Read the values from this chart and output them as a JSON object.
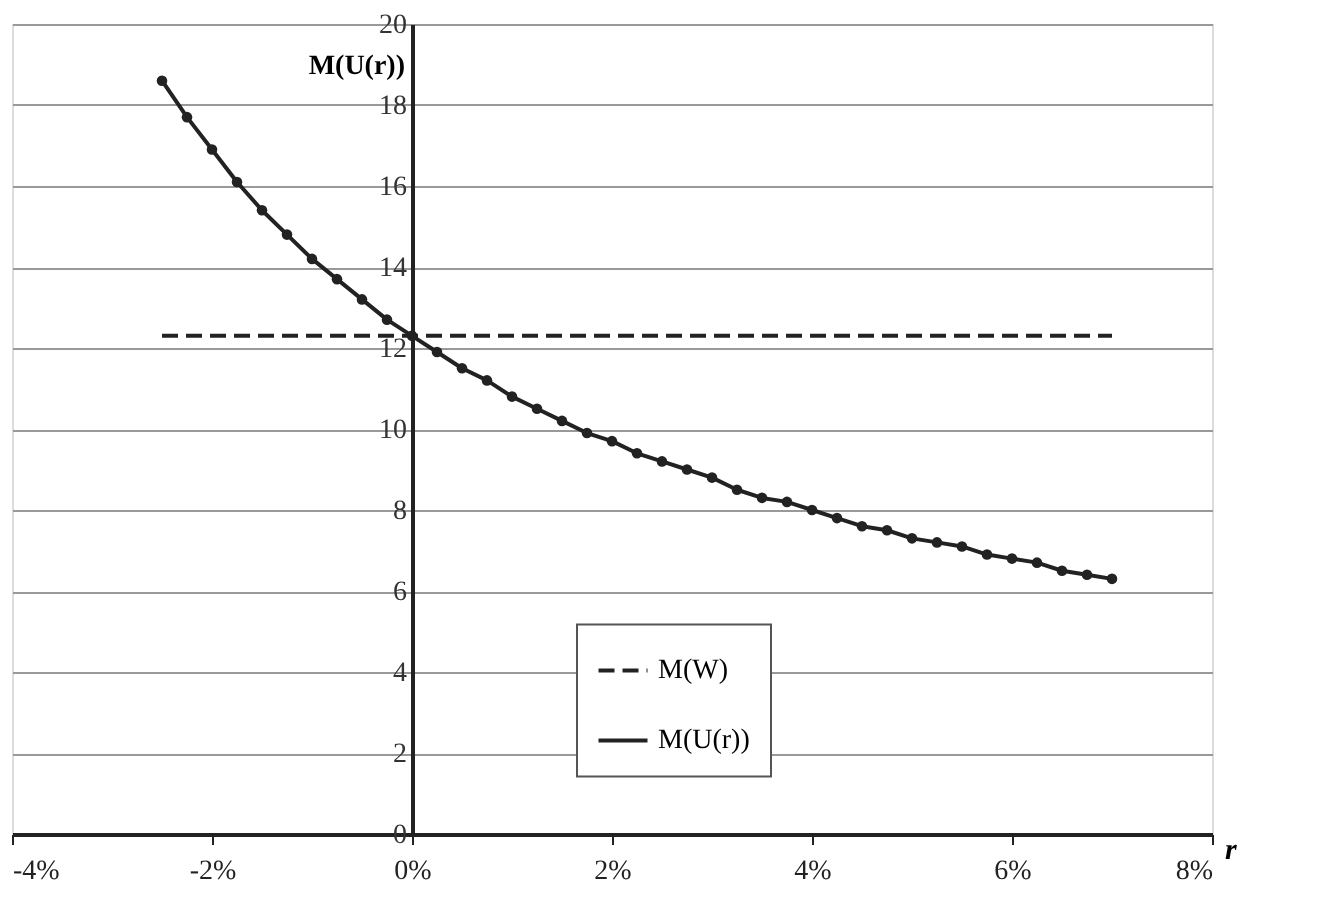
{
  "chart_data": {
    "type": "line",
    "xlabel": "r",
    "ylabel": "M(U(r))",
    "xlim": [
      -4,
      8
    ],
    "xticks": [
      {
        "value": -4,
        "label": "-4%"
      },
      {
        "value": -2,
        "label": "-2%"
      },
      {
        "value": 0,
        "label": "0%"
      },
      {
        "value": 2,
        "label": "2%"
      },
      {
        "value": 4,
        "label": "4%"
      },
      {
        "value": 6,
        "label": "6%"
      },
      {
        "value": 8,
        "label": "8%"
      }
    ],
    "ylim": [
      0,
      20
    ],
    "yticks": [
      0,
      2,
      4,
      6,
      8,
      10,
      12,
      14,
      16,
      18,
      20
    ],
    "grid": "y",
    "legend": "bottom",
    "series": [
      {
        "name": "M(W)",
        "color": "#222222",
        "line_style": "dashed",
        "marker": "none",
        "x": [
          -2.5,
          7
        ],
        "values": [
          12.3,
          12.3
        ]
      },
      {
        "name": "M(U(r))",
        "color": "#222222",
        "line_style": "solid",
        "marker": "circle",
        "x": [
          -2.5,
          -2.25,
          -2,
          -1.75,
          -1.5,
          -1.25,
          -1,
          -0.75,
          -0.5,
          -0.25,
          0,
          0.25,
          0.5,
          0.75,
          1,
          1.25,
          1.5,
          1.75,
          2,
          2.25,
          2.5,
          2.75,
          3,
          3.25,
          3.5,
          3.75,
          4,
          4.25,
          4.5,
          4.75,
          5,
          5.25,
          5.5,
          5.75,
          6,
          6.25,
          6.5,
          6.75,
          7
        ],
        "values": [
          18.6,
          17.7,
          16.9,
          16.1,
          15.4,
          14.8,
          14.2,
          13.7,
          13.2,
          12.7,
          12.3,
          11.9,
          11.5,
          11.2,
          10.8,
          10.5,
          10.2,
          9.9,
          9.7,
          9.4,
          9.2,
          9.0,
          8.8,
          8.5,
          8.3,
          8.2,
          8.0,
          7.8,
          7.6,
          7.5,
          7.3,
          7.2,
          7.1,
          6.9,
          6.8,
          6.7,
          6.5,
          6.4,
          6.3
        ]
      }
    ]
  }
}
